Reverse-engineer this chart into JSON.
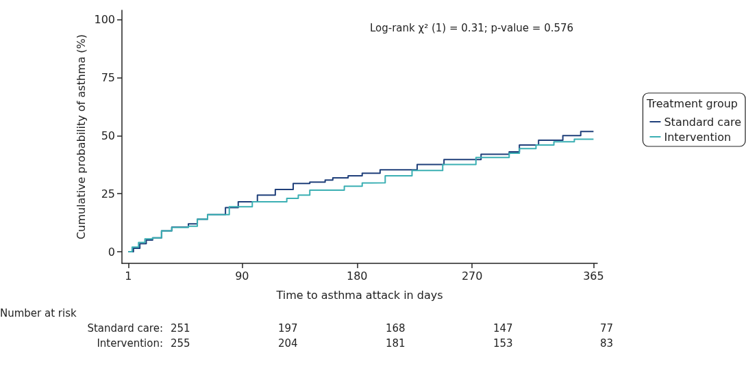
{
  "chart_data": {
    "type": "step",
    "xlabel": "Time to asthma attack in days",
    "ylabel": "Cumulative probability of asthma (%)",
    "legend_title": "Treatment group",
    "legend": "right",
    "grid": false,
    "marker": "none",
    "line_style": "solid",
    "xlim": [
      -4,
      368
    ],
    "xticks": [
      1,
      90,
      180,
      270,
      365
    ],
    "ylim": [
      -5,
      104
    ],
    "yticks": [
      0,
      25,
      50,
      75,
      100
    ],
    "series": [
      {
        "name": "Standard care",
        "color": "#1f3f7a",
        "x": [
          1,
          5,
          10,
          15,
          20,
          27,
          35,
          48,
          55,
          63,
          77,
          87,
          102,
          116,
          130,
          143,
          155,
          161,
          173,
          184,
          198,
          227,
          248,
          277,
          299,
          307,
          322,
          341,
          355,
          365
        ],
        "values": [
          0,
          1.5,
          3.5,
          5,
          6,
          9,
          10.6,
          12,
          14,
          16,
          19,
          21.5,
          24.4,
          26.8,
          29.4,
          30,
          30.9,
          31.8,
          32.7,
          33.8,
          35.3,
          37.6,
          39.7,
          42,
          43,
          46,
          48,
          50,
          51.8,
          51.8
        ]
      },
      {
        "name": "Intervention",
        "color": "#3aafb3",
        "x": [
          1,
          4,
          9,
          14,
          20,
          27,
          35,
          48,
          55,
          63,
          80,
          98,
          125,
          134,
          143,
          161,
          170,
          184,
          191,
          202,
          223,
          247,
          273,
          299,
          307,
          320,
          334,
          350,
          365
        ],
        "values": [
          0,
          2,
          4,
          5.5,
          6,
          9,
          10.5,
          11,
          14,
          16,
          19.4,
          21.5,
          23,
          24.4,
          26.5,
          26.5,
          28.2,
          29.6,
          29.7,
          32.7,
          35,
          37.6,
          40.6,
          42.4,
          44.4,
          46,
          47.4,
          48.5,
          48.5
        ]
      }
    ],
    "annotations": [
      "Log-rank χ² (1) = 0.31; p-value = 0.576",
      "Number at risk",
      "Standard care:",
      "251",
      "197",
      "168",
      "147",
      "77",
      "Intervention:",
      "255",
      "204",
      "181",
      "153",
      "83"
    ]
  }
}
